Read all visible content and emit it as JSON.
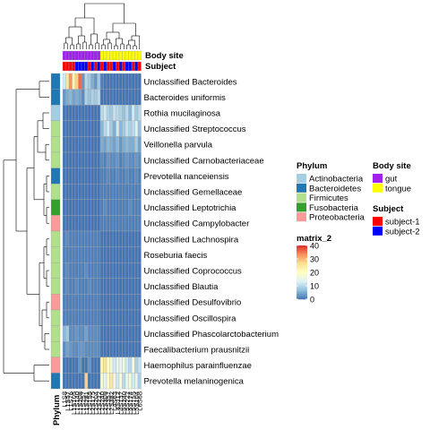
{
  "chart_data": {
    "type": "heatmap",
    "rows": [
      "Unclassified  Bacteroides",
      "Bacteroides uniformis",
      "Rothia mucilaginosa",
      "Unclassified  Streptococcus",
      "Veillonella parvula",
      "Unclassified  Carnobacteriaceae",
      "Prevotella nanceiensis",
      "Unclassified  Gemellaceae",
      "Unclassified  Leptotrichia",
      "Unclassified  Campylobacter",
      "Unclassified  Lachnospira",
      "Roseburia faecis",
      "Unclassified  Coprococcus",
      "Unclassified  Blautia",
      "Unclassified  Desulfovibrio",
      "Unclassified  Oscillospira",
      "Unclassified  Phascolarctobacterium",
      "Faecalibacterium prausnitzii",
      "Haemophilus parainfluenzae",
      "Prevotella melaninogenica"
    ],
    "columns": [
      "L1S8",
      "L1S57",
      "L1S76",
      "L1S105",
      "L1S140",
      "L1S208",
      "L1S257",
      "L1S281",
      "L2S155",
      "L2S175",
      "L2S204",
      "L2S222",
      "L2S240",
      "L2S309",
      "L2S357",
      "L2S382",
      "L4S63",
      "L4S112",
      "L4S137",
      "L5S240",
      "L5S222",
      "L5S174",
      "L5S155",
      "L5S104",
      "L6S68"
    ],
    "values": [
      [
        12,
        25,
        33,
        22,
        28,
        36,
        3,
        10,
        8,
        5,
        3,
        8,
        1,
        0,
        0,
        0,
        0,
        0,
        0,
        0,
        0,
        0,
        0,
        0,
        0
      ],
      [
        3,
        5,
        6,
        4,
        5,
        4,
        2,
        9,
        7,
        9,
        8,
        10,
        0,
        0,
        0,
        0,
        0,
        0,
        0,
        0,
        0,
        0,
        0,
        0,
        0
      ],
      [
        0,
        0,
        0,
        0,
        0,
        0,
        0,
        0,
        0,
        0,
        0,
        0,
        10,
        12,
        9,
        8,
        11,
        10,
        9,
        7,
        10,
        6,
        12,
        8,
        10
      ],
      [
        0,
        0,
        0,
        0,
        0,
        0,
        0,
        0,
        0,
        0,
        0,
        0,
        6,
        10,
        12,
        8,
        5,
        12,
        6,
        8,
        11,
        9,
        10,
        13,
        7
      ],
      [
        0,
        0,
        0,
        0,
        0,
        0,
        0,
        0,
        0,
        0,
        0,
        0,
        5,
        4,
        6,
        5,
        4,
        6,
        3,
        5,
        6,
        5,
        5,
        8,
        4
      ],
      [
        0,
        0,
        0,
        0,
        0,
        0,
        0,
        0,
        0,
        0,
        0,
        0,
        2,
        1,
        3,
        2,
        2,
        3,
        1,
        2,
        3,
        2,
        2,
        3,
        2
      ],
      [
        0,
        0,
        0,
        0,
        0,
        0,
        0,
        0,
        0,
        0,
        0,
        0,
        1,
        1,
        2,
        1,
        1,
        2,
        1,
        1,
        2,
        1,
        1,
        2,
        1
      ],
      [
        0,
        0,
        0,
        0,
        0,
        0,
        0,
        0,
        0,
        0,
        0,
        0,
        1,
        1,
        1,
        1,
        1,
        1,
        1,
        1,
        1,
        1,
        1,
        1,
        1
      ],
      [
        0,
        0,
        0,
        0,
        0,
        0,
        0,
        0,
        0,
        0,
        0,
        0,
        1,
        2,
        1,
        1,
        1,
        1,
        1,
        1,
        1,
        2,
        1,
        1,
        1
      ],
      [
        0,
        0,
        0,
        0,
        0,
        0,
        0,
        0,
        0,
        0,
        0,
        0,
        1,
        1,
        1,
        1,
        1,
        1,
        1,
        1,
        1,
        1,
        1,
        1,
        1
      ],
      [
        1,
        2,
        1,
        1,
        1,
        1,
        1,
        1,
        1,
        1,
        1,
        1,
        0,
        0,
        0,
        0,
        0,
        0,
        0,
        0,
        0,
        0,
        0,
        0,
        0
      ],
      [
        1,
        1,
        1,
        1,
        1,
        1,
        1,
        1,
        1,
        1,
        1,
        1,
        0,
        0,
        0,
        0,
        0,
        0,
        0,
        0,
        0,
        0,
        0,
        0,
        0
      ],
      [
        1,
        2,
        1,
        1,
        1,
        1,
        1,
        2,
        1,
        1,
        1,
        1,
        0,
        0,
        0,
        0,
        0,
        0,
        0,
        0,
        0,
        0,
        0,
        0,
        0
      ],
      [
        1,
        2,
        1,
        1,
        2,
        1,
        1,
        1,
        2,
        1,
        1,
        1,
        0,
        0,
        0,
        0,
        0,
        0,
        0,
        0,
        0,
        0,
        0,
        0,
        0
      ],
      [
        1,
        1,
        1,
        1,
        1,
        1,
        1,
        1,
        1,
        1,
        1,
        1,
        0,
        0,
        0,
        0,
        0,
        0,
        0,
        0,
        0,
        0,
        0,
        0,
        0
      ],
      [
        1,
        1,
        1,
        1,
        1,
        1,
        1,
        1,
        1,
        1,
        1,
        1,
        0,
        0,
        0,
        0,
        0,
        0,
        0,
        0,
        0,
        0,
        0,
        0,
        0
      ],
      [
        6,
        8,
        2,
        2,
        3,
        2,
        2,
        4,
        2,
        2,
        2,
        2,
        0,
        0,
        0,
        0,
        0,
        0,
        0,
        0,
        0,
        0,
        0,
        0,
        0
      ],
      [
        2,
        4,
        3,
        2,
        2,
        3,
        3,
        2,
        2,
        2,
        2,
        2,
        0,
        0,
        0,
        0,
        0,
        0,
        0,
        0,
        0,
        0,
        0,
        0,
        0
      ],
      [
        0,
        0,
        0,
        0,
        0,
        3,
        0,
        0,
        3,
        0,
        0,
        0,
        22,
        26,
        20,
        18,
        12,
        15,
        14,
        16,
        12,
        10,
        18,
        9,
        11
      ],
      [
        0,
        0,
        0,
        0,
        0,
        0,
        0,
        28,
        0,
        0,
        0,
        0,
        18,
        14,
        20,
        25,
        16,
        12,
        18,
        10,
        15,
        17,
        12,
        14,
        9
      ]
    ],
    "row_phylum": [
      "Bacteroidetes",
      "Bacteroidetes",
      "Actinobacteria",
      "Firmicutes",
      "Firmicutes",
      "Firmicutes",
      "Bacteroidetes",
      "Firmicutes",
      "Fusobacteria",
      "Proteobacteria",
      "Firmicutes",
      "Firmicutes",
      "Firmicutes",
      "Firmicutes",
      "Proteobacteria",
      "Firmicutes",
      "Firmicutes",
      "Firmicutes",
      "Proteobacteria",
      "Bacteroidetes"
    ],
    "col_body_site": [
      "gut",
      "gut",
      "gut",
      "gut",
      "gut",
      "gut",
      "gut",
      "gut",
      "gut",
      "gut",
      "gut",
      "gut",
      "tongue",
      "tongue",
      "tongue",
      "tongue",
      "tongue",
      "tongue",
      "tongue",
      "tongue",
      "tongue",
      "tongue",
      "tongue",
      "tongue",
      "tongue"
    ],
    "col_subject": [
      "subject-1",
      "subject-1",
      "subject-1",
      "subject-1",
      "subject-2",
      "subject-2",
      "subject-2",
      "subject-2",
      "subject-1",
      "subject-2",
      "subject-1",
      "subject-2",
      "subject-1",
      "subject-2",
      "subject-1",
      "subject-1",
      "subject-2",
      "subject-1",
      "subject-2",
      "subject-1",
      "subject-2",
      "subject-2",
      "subject-1",
      "subject-2",
      "subject-1"
    ],
    "annotation_labels": {
      "body_site": "Body site",
      "subject": "Subject",
      "phylum": "Phylum"
    },
    "legends": {
      "phylum": {
        "title": "Phylum",
        "items": [
          {
            "label": "Actinobacteria",
            "color": "#a6cee3"
          },
          {
            "label": "Bacteroidetes",
            "color": "#1f78b4"
          },
          {
            "label": "Firmicutes",
            "color": "#b2df8a"
          },
          {
            "label": "Fusobacteria",
            "color": "#33a02c"
          },
          {
            "label": "Proteobacteria",
            "color": "#fb9a99"
          }
        ]
      },
      "body_site": {
        "title": "Body site",
        "items": [
          {
            "label": "gut",
            "color": "#a020f0"
          },
          {
            "label": "tongue",
            "color": "#ffff00"
          }
        ]
      },
      "subject": {
        "title": "Subject",
        "items": [
          {
            "label": "subject-1",
            "color": "#ff0000"
          },
          {
            "label": "subject-2",
            "color": "#0000ff"
          }
        ]
      },
      "matrix": {
        "title": "matrix_2",
        "ticks": [
          0,
          10,
          20,
          30,
          40
        ],
        "range": [
          0,
          40
        ],
        "colors": [
          "#4575b4",
          "#91bfdb",
          "#e0f3f8",
          "#ffffbf",
          "#fee090",
          "#fc8d59",
          "#d73027"
        ]
      }
    }
  }
}
